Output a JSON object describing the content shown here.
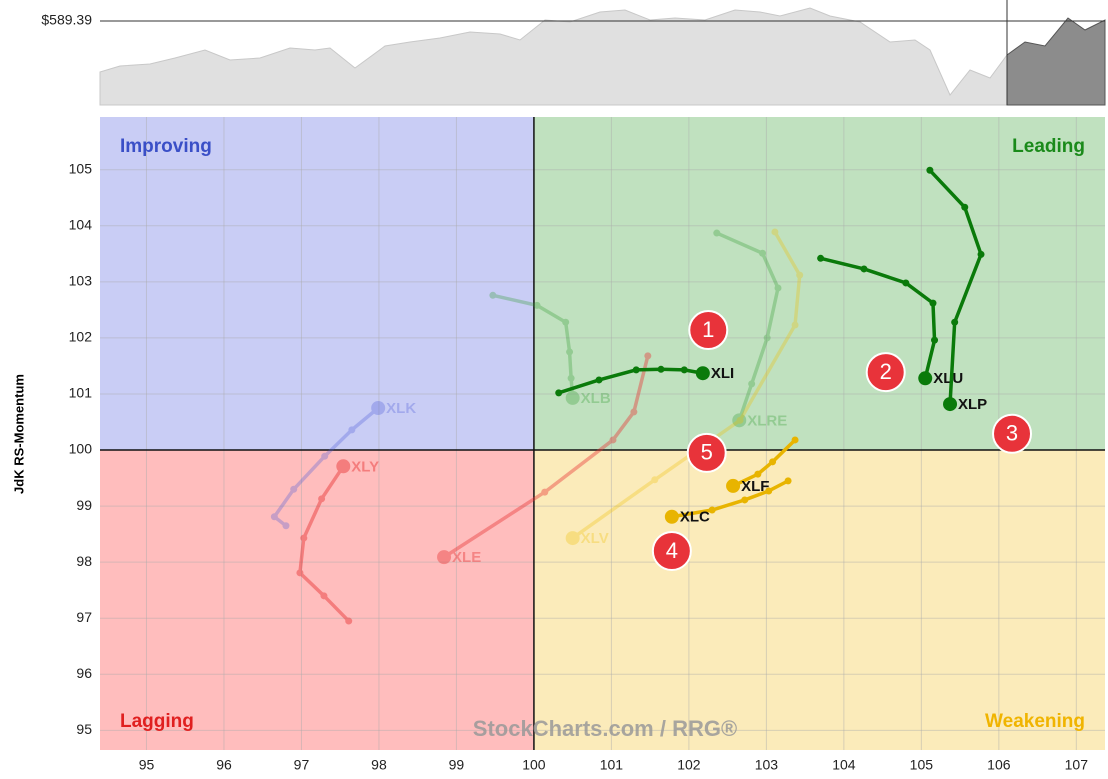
{
  "chart_data": {
    "type": "rrg",
    "benchmark_label": "$589.39",
    "y_label": "JdK RS-Momentum",
    "watermark": "StockCharts.com / RRG®",
    "xlim": [
      94.4,
      107.37
    ],
    "ylim": [
      94.65,
      105.94
    ],
    "xticks": [
      95,
      96,
      97,
      98,
      99,
      100,
      101,
      102,
      103,
      104,
      105,
      106,
      107
    ],
    "yticks": [
      95,
      96,
      97,
      98,
      99,
      100,
      101,
      102,
      103,
      104,
      105
    ],
    "center": [
      100,
      100
    ],
    "quadrants": [
      {
        "name": "Improving",
        "color": "#c9cdf5",
        "label_color": "#3a4fc7"
      },
      {
        "name": "Leading",
        "color": "#c0e1bf",
        "label_color": "#1a8a1a"
      },
      {
        "name": "Lagging",
        "color": "#ffbdbd",
        "label_color": "#e02020"
      },
      {
        "name": "Weakening",
        "color": "#fbebba",
        "label_color": "#f0b400"
      }
    ],
    "series": [
      {
        "name": "XLB",
        "color": "#2e9a2e",
        "opacity": 0.3,
        "x": [
          99.47,
          100.04,
          100.41,
          100.46,
          100.48,
          100.5
        ],
        "y": [
          102.76,
          102.58,
          102.28,
          101.75,
          101.28,
          100.93
        ]
      },
      {
        "name": "XLRE",
        "color": "#2e9a2e",
        "opacity": 0.3,
        "x": [
          102.36,
          102.95,
          103.15,
          103.01,
          102.81,
          102.65
        ],
        "y": [
          103.87,
          103.51,
          102.89,
          102.0,
          101.18,
          100.53
        ]
      },
      {
        "name": "XLK",
        "color": "#4a5ad8",
        "opacity": 0.3,
        "x": [
          96.8,
          96.65,
          96.9,
          97.3,
          97.65,
          97.99
        ],
        "y": [
          98.65,
          98.81,
          99.3,
          99.89,
          100.36,
          100.75
        ]
      },
      {
        "name": "XLY",
        "color": "#e83030",
        "opacity": 0.45,
        "x": [
          97.61,
          97.29,
          96.98,
          97.03,
          97.26,
          97.54
        ],
        "y": [
          96.95,
          97.4,
          97.81,
          98.43,
          99.13,
          99.71
        ]
      },
      {
        "name": "XLE",
        "color": "#e83030",
        "opacity": 0.4,
        "x": [
          101.47,
          101.29,
          101.02,
          100.14,
          98.84
        ],
        "y": [
          101.68,
          100.68,
          100.18,
          99.25,
          98.09
        ]
      },
      {
        "name": "XLV",
        "color": "#f0c000",
        "opacity": 0.3,
        "x": [
          103.11,
          103.43,
          103.37,
          102.66,
          101.56,
          100.5
        ],
        "y": [
          103.89,
          103.12,
          102.23,
          100.53,
          99.47,
          98.43
        ]
      },
      {
        "name": "XLI",
        "color": "#0a7a0a",
        "opacity": 1,
        "x": [
          100.32,
          100.84,
          101.32,
          101.64,
          101.94,
          102.18
        ],
        "y": [
          101.02,
          101.25,
          101.43,
          101.44,
          101.43,
          101.37
        ]
      },
      {
        "name": "XLU",
        "color": "#0a7a0a",
        "opacity": 1,
        "x": [
          103.7,
          104.26,
          104.8,
          105.15,
          105.17,
          105.05
        ],
        "y": [
          103.42,
          103.23,
          102.98,
          102.62,
          101.96,
          101.28
        ]
      },
      {
        "name": "XLP",
        "color": "#0a7a0a",
        "opacity": 1,
        "x": [
          105.11,
          105.56,
          105.77,
          105.43,
          105.37
        ],
        "y": [
          104.99,
          104.33,
          103.49,
          102.28,
          100.82
        ]
      },
      {
        "name": "XLF",
        "color": "#e8b400",
        "opacity": 1,
        "x": [
          103.37,
          103.08,
          102.89,
          102.57
        ],
        "y": [
          100.18,
          99.79,
          99.57,
          99.36
        ]
      },
      {
        "name": "XLC",
        "color": "#e8b400",
        "opacity": 1,
        "x": [
          103.28,
          103.03,
          102.72,
          102.3,
          101.78
        ],
        "y": [
          99.45,
          99.27,
          99.11,
          98.93,
          98.81
        ]
      }
    ],
    "annotations": [
      {
        "label": "1",
        "x": 102.25,
        "y": 102.14
      },
      {
        "label": "2",
        "x": 104.54,
        "y": 101.39
      },
      {
        "label": "3",
        "x": 106.17,
        "y": 100.29
      },
      {
        "label": "4",
        "x": 101.78,
        "y": 98.2
      },
      {
        "label": "5",
        "x": 102.23,
        "y": 99.95
      }
    ]
  }
}
